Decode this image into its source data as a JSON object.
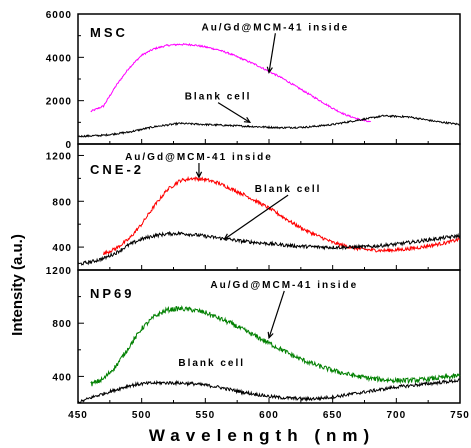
{
  "figure": {
    "xlabel": "Wavelength (nm)",
    "ylabel": "Intensity (a.u.)"
  },
  "chart_data": [
    {
      "type": "line",
      "panel_label": "MSC",
      "xlim": [
        450,
        750
      ],
      "ylim": [
        0,
        6000
      ],
      "yticks": [
        0,
        2000,
        4000,
        6000
      ],
      "ytick_labels": [
        "0",
        "2000",
        "4000",
        "6000"
      ],
      "series": [
        {
          "name": "Au/Gd@MCM-41 inside",
          "color": "#ff00ff",
          "noise": 40,
          "x": [
            460,
            470,
            480,
            490,
            500,
            510,
            520,
            530,
            540,
            550,
            560,
            570,
            580,
            590,
            600,
            610,
            620,
            630,
            640,
            650,
            660,
            670,
            680
          ],
          "y": [
            1500,
            1750,
            2700,
            3500,
            4100,
            4400,
            4550,
            4600,
            4580,
            4480,
            4350,
            4150,
            3900,
            3650,
            3350,
            3050,
            2700,
            2350,
            2000,
            1650,
            1350,
            1150,
            1000
          ]
        },
        {
          "name": "Blank cell",
          "color": "#000000",
          "noise": 40,
          "x": [
            450,
            470,
            490,
            510,
            530,
            550,
            570,
            590,
            610,
            630,
            650,
            670,
            690,
            710,
            730,
            750
          ],
          "y": [
            350,
            400,
            550,
            800,
            950,
            900,
            850,
            800,
            750,
            780,
            900,
            1100,
            1300,
            1250,
            1050,
            900
          ]
        }
      ],
      "annotations": [
        {
          "text": "Au/Gd@MCM-41 inside",
          "x": 605,
          "y": 5250,
          "arrow_to": [
            600,
            3300
          ]
        },
        {
          "text": "Blank cell",
          "x": 560,
          "y": 2050,
          "arrow_to": [
            585,
            1000
          ]
        }
      ]
    },
    {
      "type": "line",
      "panel_label": "CNE-2",
      "xlim": [
        450,
        750
      ],
      "ylim": [
        200,
        1300
      ],
      "yticks": [
        400,
        800,
        1200
      ],
      "ytick_labels": [
        "400",
        "800",
        "1200"
      ],
      "series": [
        {
          "name": "Au/Gd@MCM-41 inside",
          "color": "#ff0000",
          "noise": 15,
          "x": [
            470,
            480,
            490,
            500,
            510,
            520,
            530,
            540,
            550,
            560,
            570,
            580,
            590,
            600,
            610,
            620,
            630,
            640,
            650,
            660,
            670,
            680,
            690,
            700,
            710,
            720,
            730,
            740,
            750
          ],
          "y": [
            340,
            390,
            470,
            600,
            760,
            900,
            980,
            1000,
            990,
            960,
            910,
            860,
            800,
            740,
            670,
            600,
            540,
            490,
            440,
            410,
            385,
            375,
            370,
            375,
            385,
            400,
            420,
            440,
            470
          ]
        },
        {
          "name": "Blank cell",
          "color": "#000000",
          "noise": 15,
          "x": [
            450,
            460,
            470,
            480,
            490,
            500,
            510,
            520,
            530,
            540,
            550,
            560,
            570,
            580,
            590,
            600,
            610,
            620,
            630,
            640,
            650,
            660,
            670,
            680,
            690,
            700,
            710,
            720,
            730,
            740,
            750
          ],
          "y": [
            250,
            270,
            300,
            350,
            420,
            470,
            500,
            515,
            520,
            510,
            495,
            480,
            465,
            450,
            440,
            430,
            420,
            410,
            405,
            400,
            398,
            398,
            400,
            405,
            415,
            425,
            440,
            455,
            470,
            485,
            500
          ]
        }
      ],
      "annotations": [
        {
          "text": "Au/Gd@MCM-41 inside",
          "x": 545,
          "y": 1160,
          "arrow_to": [
            545,
            1010
          ]
        },
        {
          "text": "Blank cell",
          "x": 615,
          "y": 880,
          "arrow_to": [
            565,
            470
          ]
        }
      ]
    },
    {
      "type": "line",
      "panel_label": "NP69",
      "xlim": [
        450,
        750
      ],
      "ylim": [
        200,
        1200
      ],
      "yticks": [
        400,
        800,
        1200
      ],
      "ytick_labels": [
        "400",
        "800",
        "1200"
      ],
      "series": [
        {
          "name": "Au/Gd@MCM-41 inside",
          "color": "#008000",
          "noise": 18,
          "x": [
            460,
            470,
            480,
            490,
            500,
            510,
            520,
            530,
            540,
            550,
            560,
            570,
            580,
            590,
            600,
            610,
            620,
            630,
            640,
            650,
            660,
            670,
            680,
            690,
            700,
            710,
            720,
            730,
            740,
            750
          ],
          "y": [
            340,
            380,
            480,
            620,
            760,
            850,
            900,
            910,
            900,
            880,
            840,
            800,
            750,
            700,
            650,
            600,
            550,
            510,
            475,
            445,
            420,
            400,
            385,
            375,
            370,
            370,
            375,
            385,
            395,
            405
          ]
        },
        {
          "name": "Blank cell",
          "color": "#000000",
          "noise": 12,
          "x": [
            450,
            460,
            470,
            480,
            490,
            500,
            510,
            520,
            530,
            540,
            550,
            560,
            570,
            580,
            590,
            600,
            610,
            620,
            630,
            640,
            650,
            660,
            670,
            680,
            690,
            700,
            710,
            720,
            730,
            740,
            750
          ],
          "y": [
            200,
            240,
            270,
            300,
            330,
            345,
            350,
            352,
            350,
            345,
            335,
            320,
            300,
            280,
            265,
            250,
            240,
            235,
            230,
            235,
            245,
            260,
            275,
            290,
            305,
            320,
            330,
            340,
            350,
            360,
            370
          ]
        }
      ],
      "annotations": [
        {
          "text": "Au/Gd@MCM-41 inside",
          "x": 612,
          "y": 1065,
          "arrow_to": [
            600,
            690
          ]
        },
        {
          "text": "Blank cell",
          "x": 555,
          "y": 480,
          "arrow_to": null
        }
      ]
    }
  ],
  "x_axis": {
    "ticks": [
      450,
      500,
      550,
      600,
      650,
      700,
      750
    ],
    "tick_labels": [
      "450",
      "500",
      "550",
      "600",
      "650",
      "700",
      "750"
    ]
  }
}
